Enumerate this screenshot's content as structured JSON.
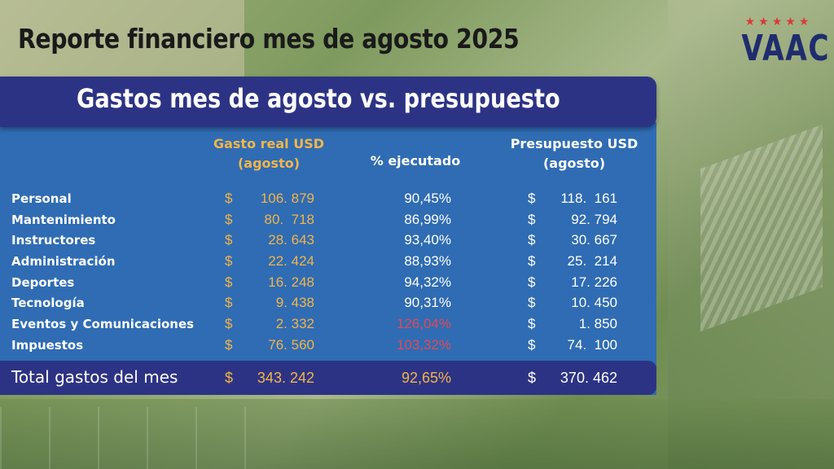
{
  "title": "Reporte financiero mes de agosto 2025",
  "logo": {
    "text": "VAAC",
    "stars": [
      "★",
      "★",
      "★",
      "★",
      "★"
    ]
  },
  "section_title": "Gastos mes de agosto vs. presupuesto",
  "columns": {
    "real_line1": "Gasto real USD",
    "real_line2": "(agosto)",
    "pct": "% ejecutado",
    "pres_line1": "Presupuesto USD",
    "pres_line2": "(agosto)"
  },
  "currency": "$",
  "rows": [
    {
      "name": "Personal",
      "real": "106. 879",
      "pct": "90,45%",
      "pres": "118.  161",
      "over": false
    },
    {
      "name": "Mantenimiento",
      "real": "80.  718",
      "pct": "86,99%",
      "pres": "92. 794",
      "over": false
    },
    {
      "name": "Instructores",
      "real": "28. 643",
      "pct": "93,40%",
      "pres": "30. 667",
      "over": false
    },
    {
      "name": "Administración",
      "real": "22. 424",
      "pct": "88,93%",
      "pres": "25.  214",
      "over": false
    },
    {
      "name": "Deportes",
      "real": "16. 248",
      "pct": "94,32%",
      "pres": "17. 226",
      "over": false
    },
    {
      "name": "Tecnología",
      "real": "9. 438",
      "pct": "90,31%",
      "pres": "10. 450",
      "over": false
    },
    {
      "name": "Eventos y Comunicaciones",
      "real": "2. 332",
      "pct": "126,04%",
      "pres": "1. 850",
      "over": true
    },
    {
      "name": "Impuestos",
      "real": "76. 560",
      "pct": "103,32%",
      "pres": "74.  100",
      "over": true
    }
  ],
  "total": {
    "label": "Total gastos del mes",
    "real": "343. 242",
    "pct": "92,65%",
    "pres": "370. 462"
  },
  "colors": {
    "panel": "#2f6cb3",
    "band": "#2d3384",
    "accent": "#f2b54b",
    "over": "#e04a5a",
    "logo": "#1f2d6e",
    "stars": "#d83a3a"
  }
}
